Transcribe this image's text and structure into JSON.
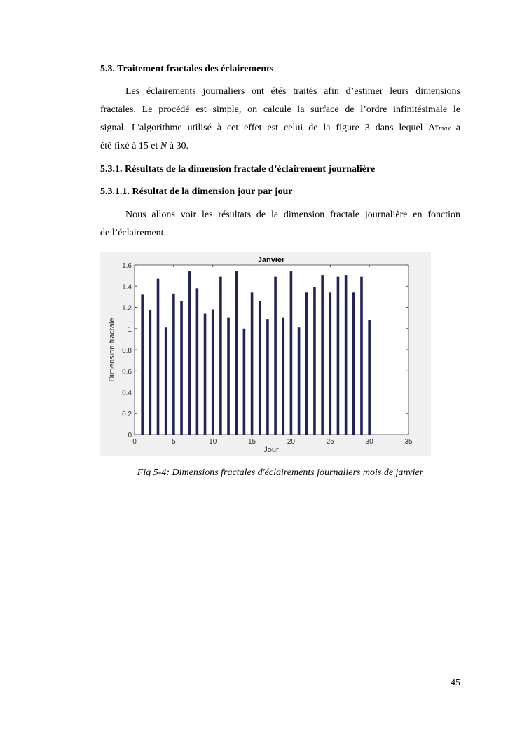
{
  "section_title": "5.3. Traitement fractales des  éclairements",
  "para1": {
    "l1": "Les éclairements journaliers ont étés traités afin d’estimer leurs dimensions",
    "l2": "fractales. Le procédé est simple, on calcule la surface de l’ordre infinitésimale le",
    "l3a": "signal. L'algorithme utilisé à cet effet est celui de la figure 3 dans lequel Δτ",
    "l3sub": "max",
    "l3b": " a",
    "l4a": "été fixé à 15 et ",
    "l4n": "N",
    "l4b": " à 30."
  },
  "subsection_title": "5.3.1. Résultats de la dimension fractale d’éclairement journalière",
  "subsubsection_title": "5.3.1.1. Résultat de la dimension jour par jour",
  "para2": {
    "l1": "Nous allons voir les résultats de la dimension fractale journalière en fonction",
    "l2": "de l’éclairement."
  },
  "caption": "Fig 5-4: Dimensions fractales d'éclairements journaliers mois de janvier",
  "page_number": "45",
  "chart_data": {
    "type": "bar",
    "title": "Janvier",
    "xlabel": "Jour",
    "ylabel": "Dimension fractale",
    "xlim": [
      0,
      35
    ],
    "ylim": [
      0,
      1.6
    ],
    "xticks": [
      "0",
      "5",
      "10",
      "15",
      "20",
      "25",
      "30",
      "35"
    ],
    "yticks": [
      "0",
      "0.2",
      "0.4",
      "0.6",
      "0.8",
      "1",
      "1.2",
      "1.4",
      "1.6"
    ],
    "x": [
      1,
      2,
      3,
      4,
      5,
      6,
      7,
      8,
      9,
      10,
      11,
      12,
      13,
      14,
      15,
      16,
      17,
      18,
      19,
      20,
      21,
      22,
      23,
      24,
      25,
      26,
      27,
      28,
      29,
      30
    ],
    "values": [
      1.32,
      1.17,
      1.47,
      1.01,
      1.33,
      1.26,
      1.54,
      1.38,
      1.14,
      1.18,
      1.49,
      1.1,
      1.54,
      1.0,
      1.34,
      1.26,
      1.09,
      1.49,
      1.1,
      1.54,
      1.01,
      1.34,
      1.39,
      1.5,
      1.34,
      1.49,
      1.5,
      1.34,
      1.49,
      1.08
    ],
    "bar_color": "#222255",
    "grid": false
  }
}
